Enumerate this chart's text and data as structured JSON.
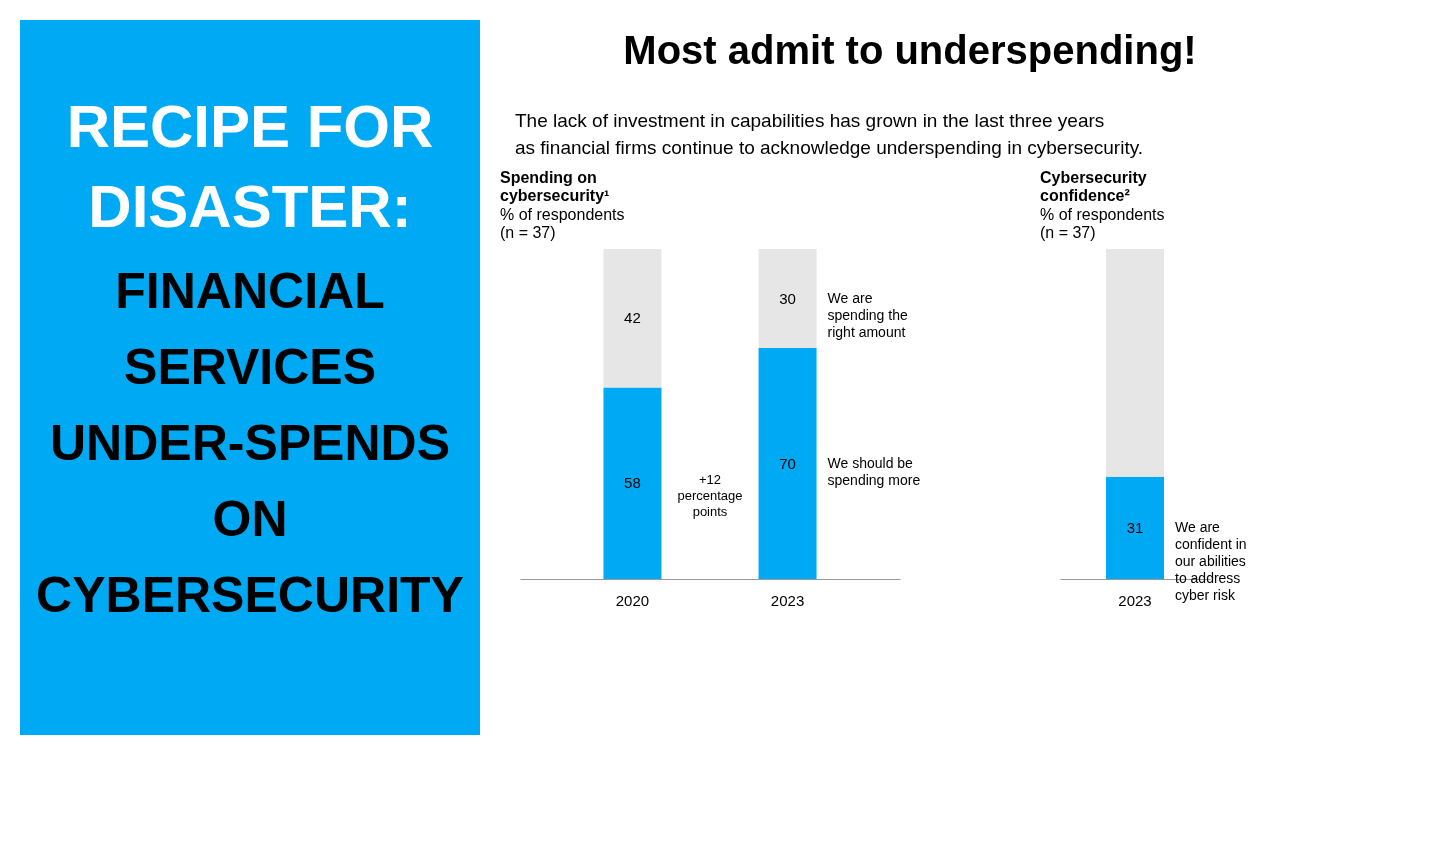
{
  "chart_data": [
    {
      "type": "other",
      "title": "RECIPE FOR DISASTER:",
      "subtitle": "FINANCIAL SERVICES UNDER-SPENDS ON CYBERSECURITY"
    },
    {
      "type": "other",
      "title": "Most admit to underspending!",
      "subtitle": "The lack of investment in capabilities has grown in the last three years as financial firms continue to acknowledge underspending in cybersecurity."
    },
    {
      "type": "bar",
      "stacked": true,
      "title": "Spending on cybersecurity¹",
      "subtitle": "% of respondents (n = 37)",
      "categories": [
        "2020",
        "2023"
      ],
      "ylim": [
        0,
        100
      ],
      "tick_labels": "x",
      "data_labels": true,
      "series": [
        {
          "name": "We should be spending more",
          "color": "#00a9f4",
          "values": [
            58,
            70
          ]
        },
        {
          "name": "We are spending the right amount",
          "color": "#e6e6e6",
          "values": [
            42,
            30
          ]
        }
      ],
      "annotations": [
        "+12 percentage points"
      ]
    },
    {
      "type": "bar",
      "stacked": true,
      "title": "Cybersecurity confidence²",
      "subtitle": "% of respondents (n = 37)",
      "categories": [
        "2023"
      ],
      "ylim": [
        0,
        100
      ],
      "tick_labels": "x",
      "series": [
        {
          "name": "We are confident in our abilities to address cyber risk",
          "color": "#00a9f4",
          "values": [
            31
          ],
          "value_labels": [
            "31"
          ]
        },
        {
          "color": "#e6e6e6",
          "values": [
            69
          ],
          "value_labels": [
            null
          ]
        }
      ]
    }
  ]
}
